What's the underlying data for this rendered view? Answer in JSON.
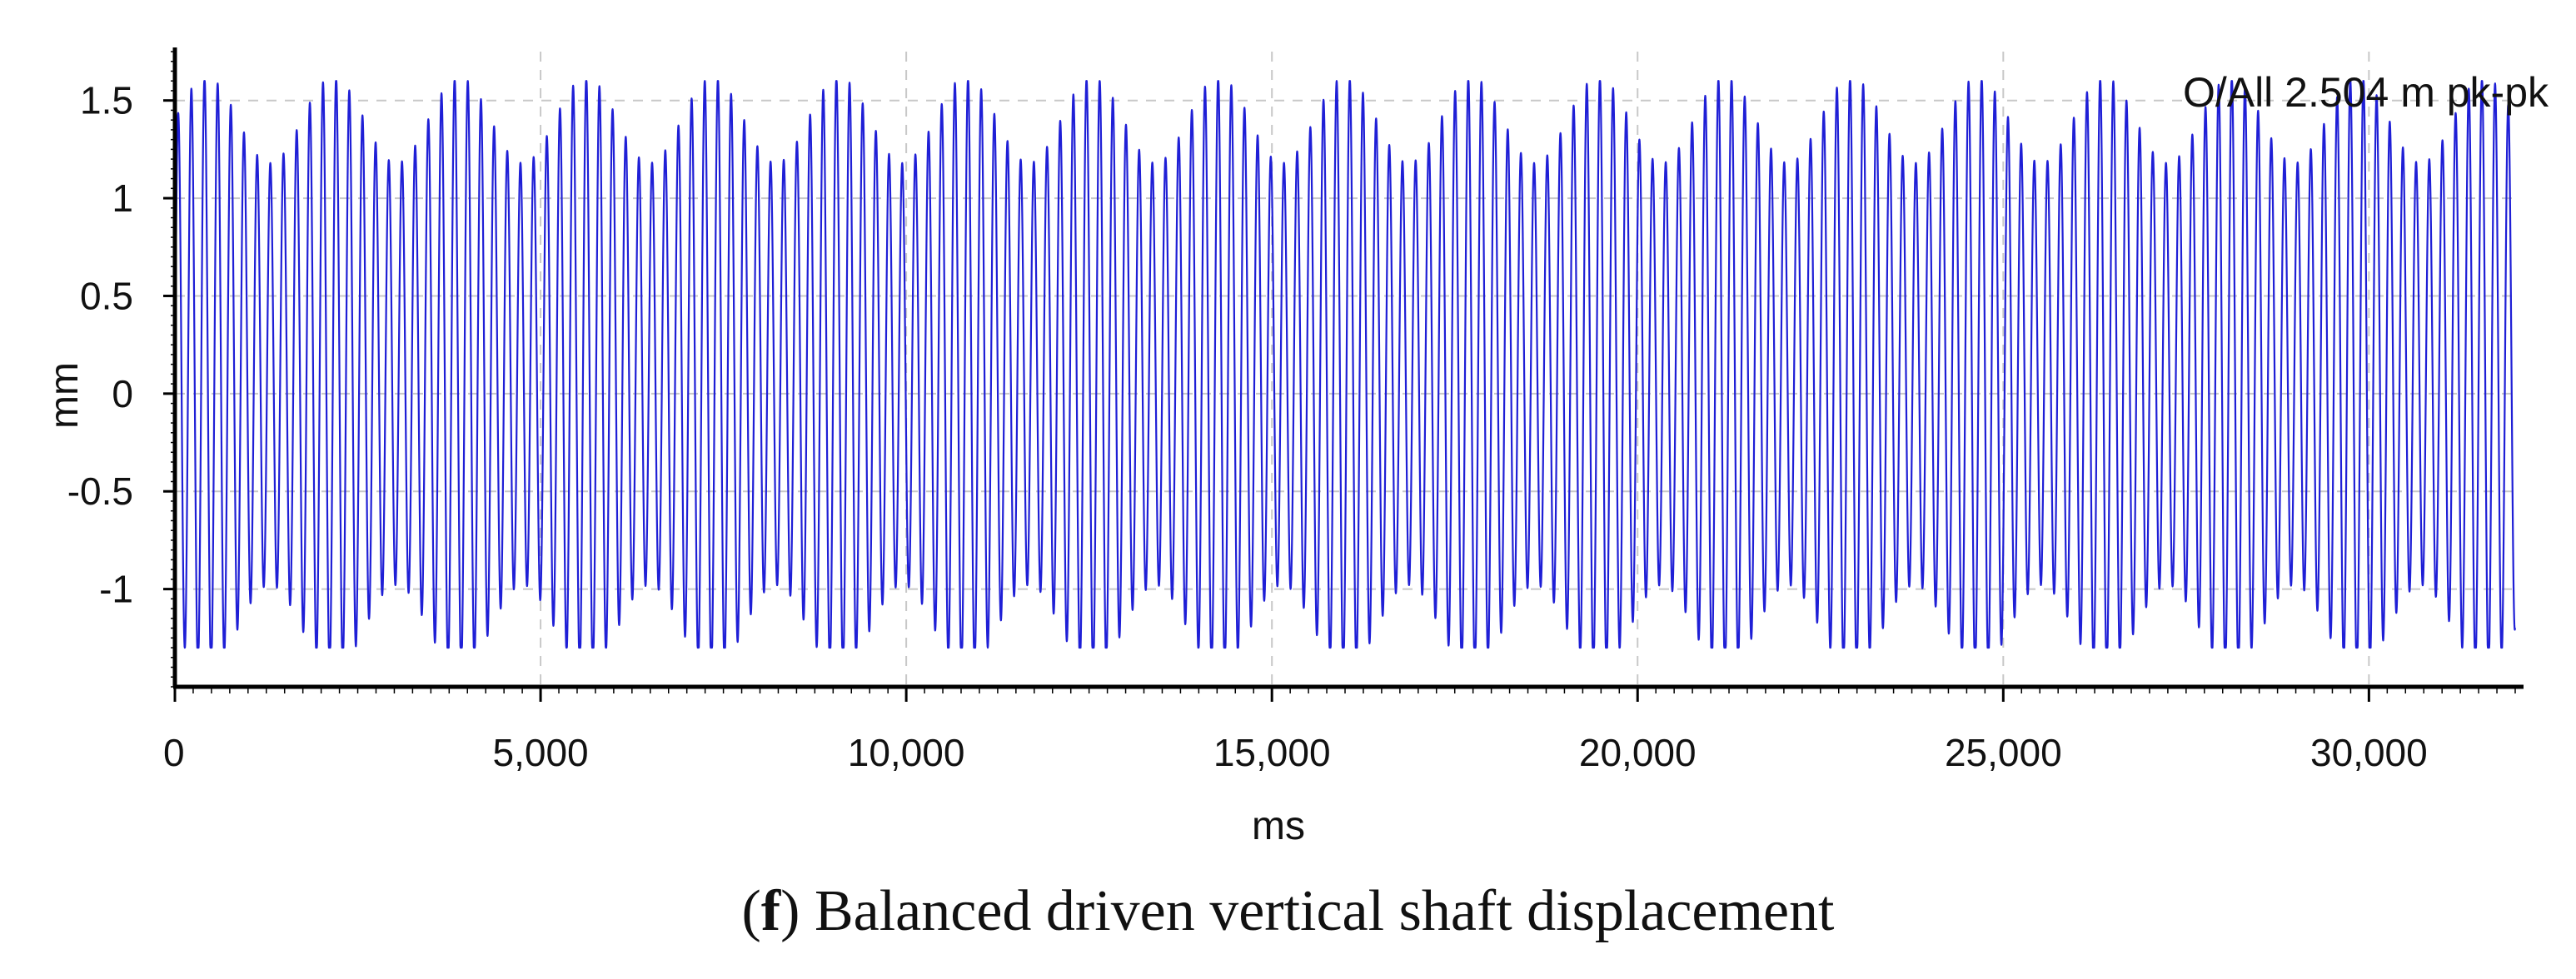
{
  "chart_data": {
    "type": "line",
    "title": "",
    "xlabel": "ms",
    "ylabel": "mm",
    "xlim": [
      0,
      32000
    ],
    "ylim": [
      -1.5,
      1.75
    ],
    "x_ticks": [
      0,
      5000,
      10000,
      15000,
      20000,
      25000,
      30000
    ],
    "x_tick_labels": [
      "0",
      "5,000",
      "10,000",
      "15,000",
      "20,000",
      "25,000",
      "30,000"
    ],
    "y_ticks": [
      1.5,
      1,
      0.5,
      0,
      -0.5,
      -1
    ],
    "y_tick_labels": [
      "1.5",
      "1",
      "0.5",
      "0",
      "-0.5",
      "-1"
    ],
    "grid": true,
    "annotation": "O/All 2.504 m pk-pk",
    "series": [
      {
        "color": "#1f1fd6",
        "signal": {
          "duration_ms": 32000,
          "carrier_period_ms": 180,
          "mean_amplitude_mm": 1.3,
          "modulation_depth_mm": 0.22,
          "modulation_period_ms": 1730,
          "offset_mm": 0.1,
          "max_mm": 1.6,
          "min_mm": -1.3
        }
      }
    ]
  },
  "caption": {
    "letter": "f",
    "open": "(",
    "close": ")",
    "text": " Balanced driven vertical shaft displacement"
  }
}
